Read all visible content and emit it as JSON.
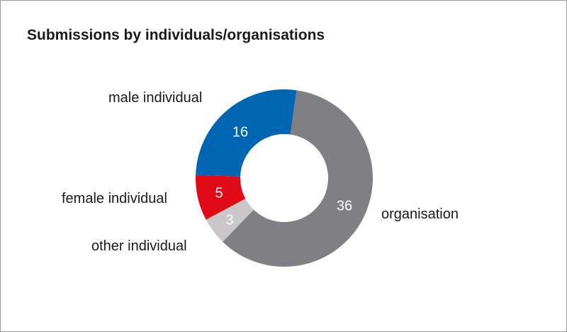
{
  "title": "Submissions by individuals/organisations",
  "chart_data": {
    "type": "pie",
    "subtype": "donut",
    "title": "Submissions by individuals/organisations",
    "categories": [
      "organisation",
      "other individual",
      "female individual",
      "male individual"
    ],
    "values": [
      36,
      3,
      5,
      16
    ],
    "colors": [
      "#808084",
      "#c9c7c8",
      "#e10b17",
      "#0066b3"
    ],
    "total": 60,
    "labels_shown": [
      "36",
      "3",
      "5",
      "16"
    ]
  },
  "labels": {
    "male": "male individual",
    "female": "female individual",
    "other": "other individual",
    "organisation": "organisation"
  }
}
